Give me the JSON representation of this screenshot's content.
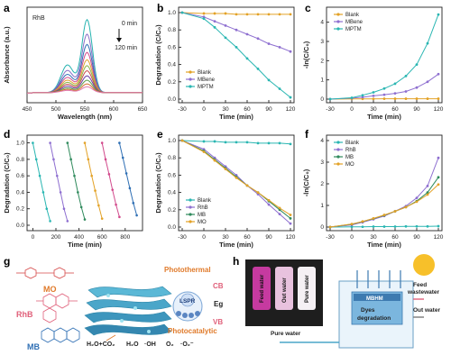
{
  "panels": {
    "a": "a",
    "b": "b",
    "c": "c",
    "d": "d",
    "e": "e",
    "f": "f",
    "g": "g",
    "h": "h"
  },
  "chart_data": [
    {
      "id": "a",
      "type": "line",
      "xlabel": "Wavelength (nm)",
      "ylabel": "Absorbance (a.u.)",
      "xlim": [
        450,
        650
      ],
      "xticks": [
        "450",
        "500",
        "550",
        "600",
        "650"
      ],
      "label": "RhB",
      "annotations": [
        "0 min",
        "120 min"
      ],
      "series_colors": [
        "#27b3b0",
        "#8a6fc7",
        "#2f6fb4",
        "#d24a8c",
        "#e0a12e",
        "#8bb34a",
        "#c94a4a",
        "#6c3fa0",
        "#5b9b4a",
        "#d36b2b",
        "#e07ab0"
      ],
      "peak_heights": [
        1.0,
        0.8,
        0.66,
        0.55,
        0.45,
        0.37,
        0.3,
        0.23,
        0.17,
        0.12,
        0.08
      ]
    },
    {
      "id": "b",
      "type": "line",
      "xlabel": "Time (min)",
      "ylabel": "Degradation (C/C₀)",
      "xlim": [
        -30,
        120
      ],
      "ylim": [
        0,
        1.0
      ],
      "xticks": [
        "-30",
        "0",
        "30",
        "60",
        "90",
        "120"
      ],
      "yticks": [
        "0.0",
        "0.2",
        "0.4",
        "0.6",
        "0.8",
        "1.0"
      ],
      "x": [
        -30,
        0,
        15,
        30,
        45,
        60,
        75,
        90,
        105,
        120
      ],
      "series": [
        {
          "name": "Blank",
          "color": "#e3a227",
          "values": [
            1.0,
            0.99,
            0.99,
            0.99,
            0.98,
            0.98,
            0.98,
            0.98,
            0.98,
            0.98
          ]
        },
        {
          "name": "MBene",
          "color": "#8e6fd0",
          "values": [
            1.0,
            0.95,
            0.9,
            0.85,
            0.8,
            0.75,
            0.7,
            0.64,
            0.6,
            0.55
          ]
        },
        {
          "name": "MPTM",
          "color": "#2ab6b2",
          "values": [
            1.0,
            0.93,
            0.83,
            0.71,
            0.6,
            0.47,
            0.35,
            0.22,
            0.12,
            0.02
          ]
        }
      ]
    },
    {
      "id": "c",
      "type": "line",
      "xlabel": "Time (min)",
      "ylabel": "-ln(C/C₀)",
      "xlim": [
        -30,
        120
      ],
      "ylim": [
        0,
        4.5
      ],
      "xticks": [
        "-30",
        "0",
        "30",
        "60",
        "90",
        "120"
      ],
      "yticks": [
        "0",
        "1",
        "2",
        "3",
        "4"
      ],
      "x": [
        -30,
        0,
        15,
        30,
        45,
        60,
        75,
        90,
        105,
        120
      ],
      "series": [
        {
          "name": "Blank",
          "color": "#e3a227",
          "values": [
            0,
            0.01,
            0.01,
            0.01,
            0.02,
            0.02,
            0.02,
            0.02,
            0.02,
            0.02
          ]
        },
        {
          "name": "MBene",
          "color": "#8e6fd0",
          "values": [
            0,
            0.05,
            0.1,
            0.17,
            0.23,
            0.3,
            0.4,
            0.6,
            0.9,
            1.3
          ]
        },
        {
          "name": "MPTM",
          "color": "#2ab6b2",
          "values": [
            0,
            0.07,
            0.2,
            0.35,
            0.55,
            0.8,
            1.2,
            1.8,
            2.9,
            4.4
          ]
        }
      ]
    },
    {
      "id": "d",
      "type": "line",
      "xlabel": "Time (min)",
      "ylabel": "Degradation (C/C₀)",
      "xlim": [
        -50,
        950
      ],
      "ylim": [
        0,
        1.05
      ],
      "xticks": [
        "0",
        "200",
        "400",
        "600",
        "800"
      ],
      "yticks": [
        "0.0",
        "0.2",
        "0.4",
        "0.6",
        "0.8",
        "1.0"
      ],
      "cycles": [
        {
          "color": "#2ab6b2",
          "x": [
            0,
            30,
            60,
            90,
            120,
            150
          ],
          "values": [
            1.0,
            0.8,
            0.6,
            0.4,
            0.2,
            0.05
          ]
        },
        {
          "color": "#8e6fd0",
          "x": [
            150,
            180,
            210,
            240,
            270,
            300
          ],
          "values": [
            1.0,
            0.8,
            0.6,
            0.4,
            0.2,
            0.05
          ]
        },
        {
          "color": "#2f8a5c",
          "x": [
            300,
            330,
            360,
            390,
            420,
            450
          ],
          "values": [
            1.0,
            0.8,
            0.6,
            0.4,
            0.22,
            0.07
          ]
        },
        {
          "color": "#e3a227",
          "x": [
            450,
            480,
            510,
            540,
            570,
            600
          ],
          "values": [
            1.0,
            0.8,
            0.6,
            0.42,
            0.24,
            0.08
          ]
        },
        {
          "color": "#d24a8c",
          "x": [
            600,
            630,
            660,
            690,
            720,
            750
          ],
          "values": [
            1.0,
            0.8,
            0.62,
            0.43,
            0.25,
            0.1
          ]
        },
        {
          "color": "#2f6fb4",
          "x": [
            750,
            780,
            810,
            840,
            870,
            900
          ],
          "values": [
            1.0,
            0.82,
            0.63,
            0.45,
            0.27,
            0.12
          ]
        }
      ]
    },
    {
      "id": "e",
      "type": "line",
      "xlabel": "Time (min)",
      "ylabel": "Degradation (C/C₀)",
      "xlim": [
        -30,
        120
      ],
      "ylim": [
        0,
        1.0
      ],
      "xticks": [
        "-30",
        "0",
        "30",
        "60",
        "90",
        "120"
      ],
      "yticks": [
        "0.0",
        "0.2",
        "0.4",
        "0.6",
        "0.8",
        "1.0"
      ],
      "x": [
        -30,
        0,
        15,
        30,
        45,
        60,
        75,
        90,
        105,
        120
      ],
      "series": [
        {
          "name": "Blank",
          "color": "#2ab6b2",
          "values": [
            1.0,
            0.99,
            0.99,
            0.98,
            0.98,
            0.98,
            0.97,
            0.97,
            0.97,
            0.96
          ]
        },
        {
          "name": "RhB",
          "color": "#8e6fd0",
          "values": [
            1.0,
            0.9,
            0.8,
            0.7,
            0.6,
            0.48,
            0.38,
            0.26,
            0.15,
            0.04
          ]
        },
        {
          "name": "MB",
          "color": "#2f8a5c",
          "values": [
            1.0,
            0.88,
            0.78,
            0.68,
            0.58,
            0.48,
            0.4,
            0.3,
            0.2,
            0.1
          ]
        },
        {
          "name": "MO",
          "color": "#e3a227",
          "values": [
            1.0,
            0.87,
            0.77,
            0.67,
            0.57,
            0.48,
            0.4,
            0.31,
            0.22,
            0.14
          ]
        }
      ]
    },
    {
      "id": "f",
      "type": "line",
      "xlabel": "Time (min)",
      "ylabel": "-ln(C/C₀)",
      "xlim": [
        -30,
        120
      ],
      "ylim": [
        0,
        4
      ],
      "xticks": [
        "-30",
        "0",
        "30",
        "60",
        "90",
        "120"
      ],
      "yticks": [
        "0",
        "1",
        "2",
        "3",
        "4"
      ],
      "x": [
        -30,
        0,
        15,
        30,
        45,
        60,
        75,
        90,
        105,
        120
      ],
      "series": [
        {
          "name": "Blank",
          "color": "#2ab6b2",
          "values": [
            0,
            0.01,
            0.01,
            0.02,
            0.02,
            0.02,
            0.03,
            0.03,
            0.03,
            0.04
          ]
        },
        {
          "name": "RhB",
          "color": "#8e6fd0",
          "values": [
            0,
            0.1,
            0.22,
            0.36,
            0.51,
            0.73,
            0.97,
            1.35,
            1.9,
            3.2
          ]
        },
        {
          "name": "MB",
          "color": "#2f8a5c",
          "values": [
            0,
            0.13,
            0.25,
            0.39,
            0.54,
            0.73,
            0.92,
            1.2,
            1.6,
            2.3
          ]
        },
        {
          "name": "MO",
          "color": "#e3a227",
          "values": [
            0,
            0.14,
            0.26,
            0.4,
            0.56,
            0.73,
            0.92,
            1.17,
            1.5,
            1.97
          ]
        }
      ]
    }
  ],
  "scheme_g": {
    "MO": "MO",
    "RhB": "RhB",
    "MB": "MB",
    "photothermal": "Photothermal",
    "photocatalytic": "Photocatalytic",
    "LSPR": "LSPR",
    "CB": "CB",
    "Eg": "Eg",
    "VB": "VB",
    "products": "H₂O+CO₂",
    "radicals": [
      "H₂O",
      "·OH",
      "O₂",
      "·O₂⁻"
    ]
  },
  "scheme_h": {
    "vials": [
      "Feed water",
      "Out water",
      "Pure water"
    ],
    "MBHM": "MBHM",
    "dyes": "Dyes\ndegradation",
    "feed": "Feed\nwastewater",
    "out": "Out water",
    "pure": "Pure water"
  }
}
